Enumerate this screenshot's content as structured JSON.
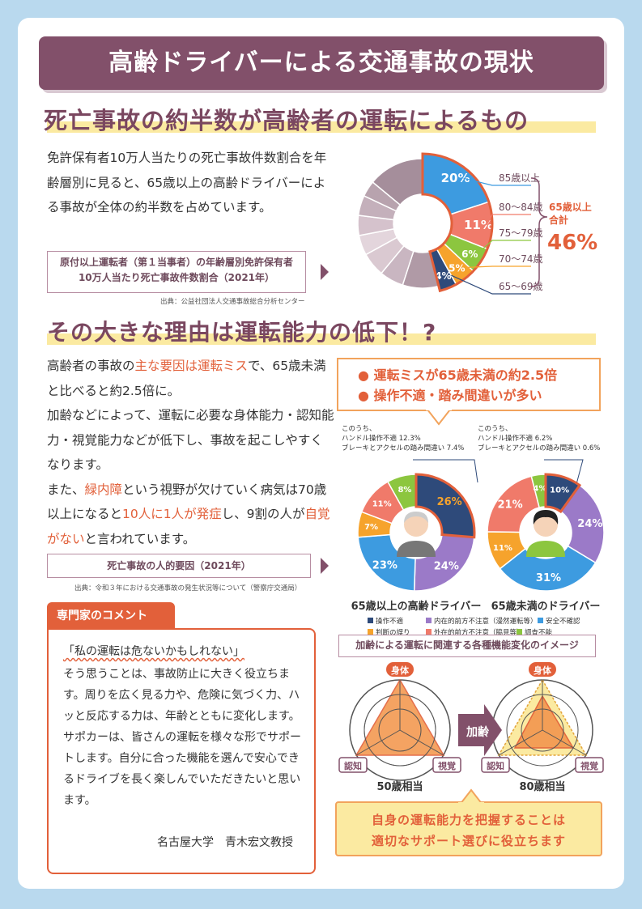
{
  "title": "高齢ドライバーによる交通事故の現状",
  "section1": {
    "heading": "死亡事故の約半数が高齢者の運転によるもの",
    "body": "免許保有者10万人当たりの死亡事故件数割合を年齢層別に見ると、65歳以上の高齢ドライバーによる事故が全体の約半数を占めています。",
    "box_line1": "原付以上運転者（第１当事者）の年齢層別免許保有者",
    "box_line2": "10万人当たり死亡事故件数割合（2021年）",
    "source": "出典：公益社団法人交通事故総合分析センター"
  },
  "section2": {
    "heading": "その大きな理由は運転能力の低下！?",
    "p_a1": "高齢者の事故の",
    "p_a2": "主な要因は運転ミス",
    "p_a3": "で、65歳未満と比べると約2.5倍に。",
    "p_b": "加齢などによって、運転に必要な身体能力・認知能力・視覚能力などが低下し、事故を起こしやすくなります。",
    "p_c1": "また、",
    "p_c2": "緑内障",
    "p_c3": "という視野が欠けていく病気は70歳以上になると",
    "p_c4": "10人に1人が発症",
    "p_c5": "し、9割の人が",
    "p_c6": "自覚がない",
    "p_c7": "と言われています。",
    "box": "死亡事故の人的要因（2021年）",
    "source": "出典：令和３年における交通事故の発生状況等について（警察庁交通局）",
    "callout_1": "運転ミスが65歳未満の約2.5倍",
    "callout_2": "操作不適・踏み間違いが多い"
  },
  "comment": {
    "tab": "専門家のコメント",
    "quote": "「私の運転は危ないかもしれない」",
    "body": "そう思うことは、事故防止に大きく役立ちます。周りを広く見る力や、危険に気づく力、ハッと反応する力は、年齢とともに変化します。",
    "body2": "サポカーは、皆さんの運転を様々な形でサポートします。自分に合った機能を選んで安心できるドライブを長く楽しんでいただきたいと思います。",
    "signature": "名古屋大学　青木宏文教授"
  },
  "functions": {
    "title": "加齢による運転に関連する各種機能変化のイメージ",
    "label_body": "身体",
    "label_cognition": "認知",
    "label_vision": "視覚",
    "arrow_label": "加齢",
    "caption_50": "50歳相当",
    "caption_80": "80歳相当"
  },
  "bottom": {
    "line1": "自身の運転能力を把握することは",
    "line2": "適切なサポート選びに役立ちます"
  },
  "chart_data": [
    {
      "type": "pie",
      "title": "原付以上運転者（第１当事者）の年齢層別免許保有者10万人当たり死亡事故件数割合（2021年）",
      "highlight": [
        {
          "label": "85歳以上",
          "value": 20,
          "text": "20%",
          "color": "#3d9be0"
        },
        {
          "label": "80〜84歳",
          "value": 11,
          "text": "11%",
          "color": "#f07a6a"
        },
        {
          "label": "75〜79歳",
          "value": 6,
          "text": "6%",
          "color": "#8cc63f"
        },
        {
          "label": "70〜74歳",
          "value": 5,
          "text": "5%",
          "color": "#f6a32c"
        },
        {
          "label": "65〜69歳",
          "value": 4,
          "text": "4%",
          "color": "#2e4a7a"
        }
      ],
      "others": [
        9,
        6,
        6,
        5,
        5,
        5,
        4,
        14
      ],
      "total_label": "65歳以上合計",
      "total_value": "46%"
    },
    {
      "type": "pie",
      "title": "65歳以上の高齢ドライバー",
      "note1": "このうち、",
      "note2": "ハンドル操作不適 12.3%",
      "note3": "ブレーキとアクセルの踏み間違い 7.4%",
      "values": [
        26,
        24,
        23,
        7,
        11,
        8
      ],
      "labels": [
        "26%",
        "24%",
        "23%",
        "7%",
        "11%",
        "8%"
      ]
    },
    {
      "type": "pie",
      "title": "65歳未満のドライバー",
      "note1": "このうち、",
      "note2": "ハンドル操作不適 6.2%",
      "note3": "ブレーキとアクセルの踏み間違い 0.6%",
      "values": [
        10,
        24,
        31,
        11,
        21,
        4
      ],
      "labels": [
        "10%",
        "24%",
        "31%",
        "11%",
        "21%",
        "4%"
      ]
    }
  ],
  "legend": [
    {
      "label": "操作不適",
      "color": "#2e4a7a"
    },
    {
      "label": "内在的前方不注意（漫然運転等）",
      "color": "#9b7ac8"
    },
    {
      "label": "安全不確認",
      "color": "#3d9be0"
    },
    {
      "label": "判断の誤り",
      "color": "#f6a32c"
    },
    {
      "label": "外在的前方不注意（脇見等）",
      "color": "#f07a6a"
    },
    {
      "label": "調査不能",
      "color": "#8cc63f"
    }
  ]
}
